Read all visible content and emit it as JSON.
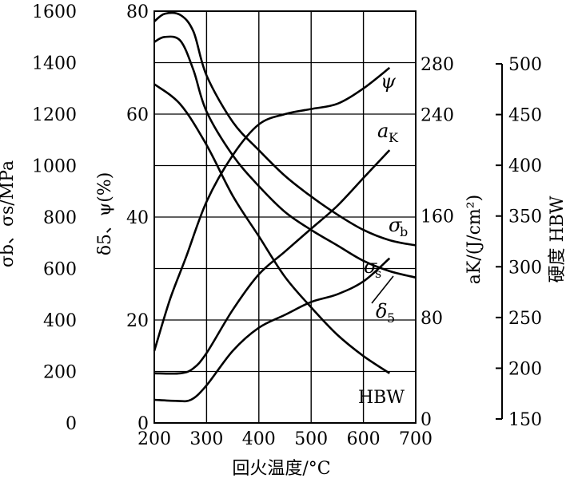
{
  "chart_data": {
    "type": "line",
    "x": {
      "label": "回火温度/°C",
      "range": [
        200,
        700
      ],
      "ticks": [
        200,
        300,
        400,
        500,
        600,
        700
      ]
    },
    "axes": {
      "stress": {
        "label": "σb、σs/MPa",
        "range": [
          0,
          1600
        ],
        "ticks": [
          0,
          200,
          400,
          600,
          800,
          1000,
          1200,
          1400,
          1600
        ]
      },
      "percent": {
        "label": "δ5、ψ(%)",
        "range": [
          0,
          80
        ],
        "ticks": [
          0,
          20,
          40,
          60,
          80
        ]
      },
      "impact": {
        "label": "aK/(J/cm²)",
        "range": [
          0,
          320
        ],
        "ticks": [
          0,
          80,
          160,
          240,
          280
        ]
      },
      "hardness": {
        "label": "硬度 HBW",
        "range": [
          150,
          500
        ],
        "ticks": [
          150,
          200,
          250,
          300,
          350,
          400,
          450,
          500
        ]
      }
    },
    "series": [
      {
        "name": "σb",
        "label": "σ",
        "sub": "b",
        "axis": "stress",
        "x": [
          200,
          220,
          250,
          275,
          300,
          350,
          400,
          450,
          500,
          550,
          600,
          650,
          700
        ],
        "y": [
          1560,
          1590,
          1585,
          1520,
          1350,
          1170,
          1060,
          960,
          880,
          810,
          750,
          710,
          690
        ]
      },
      {
        "name": "σs",
        "label": "σ",
        "sub": "s",
        "axis": "stress",
        "x": [
          200,
          220,
          250,
          275,
          300,
          350,
          400,
          450,
          500,
          550,
          600,
          650,
          700
        ],
        "y": [
          1480,
          1500,
          1485,
          1370,
          1210,
          1040,
          920,
          820,
          750,
          690,
          630,
          590,
          565
        ]
      },
      {
        "name": "ψ",
        "label": "ψ",
        "sub": "",
        "axis": "percent",
        "x": [
          200,
          230,
          260,
          300,
          350,
          400,
          450,
          500,
          550,
          600,
          650
        ],
        "y": [
          14,
          24,
          32,
          43,
          52,
          58,
          60,
          61,
          62,
          65,
          69
        ]
      },
      {
        "name": "δ5",
        "label": "δ",
        "sub": "5",
        "axis": "percent",
        "x": [
          200,
          240,
          270,
          300,
          350,
          400,
          450,
          500,
          550,
          600,
          650
        ],
        "y": [
          4.5,
          4.3,
          4.5,
          7.3,
          14,
          18.5,
          21,
          23.5,
          25,
          27.5,
          32
        ]
      },
      {
        "name": "aK",
        "label": "a",
        "sub": "K",
        "axis": "impact",
        "x": [
          200,
          250,
          275,
          300,
          350,
          400,
          450,
          500,
          550,
          600,
          650
        ],
        "y": [
          36,
          36,
          40,
          52,
          86,
          114,
          132,
          150,
          168,
          190,
          212
        ]
      },
      {
        "name": "HBW",
        "label": "HBW",
        "sub": "",
        "axis": "hardness",
        "x": [
          200,
          250,
          300,
          350,
          400,
          450,
          500,
          550,
          600,
          650
        ],
        "y": [
          480,
          460,
          420,
          370,
          330,
          290,
          260,
          233,
          212,
          195
        ]
      }
    ]
  }
}
